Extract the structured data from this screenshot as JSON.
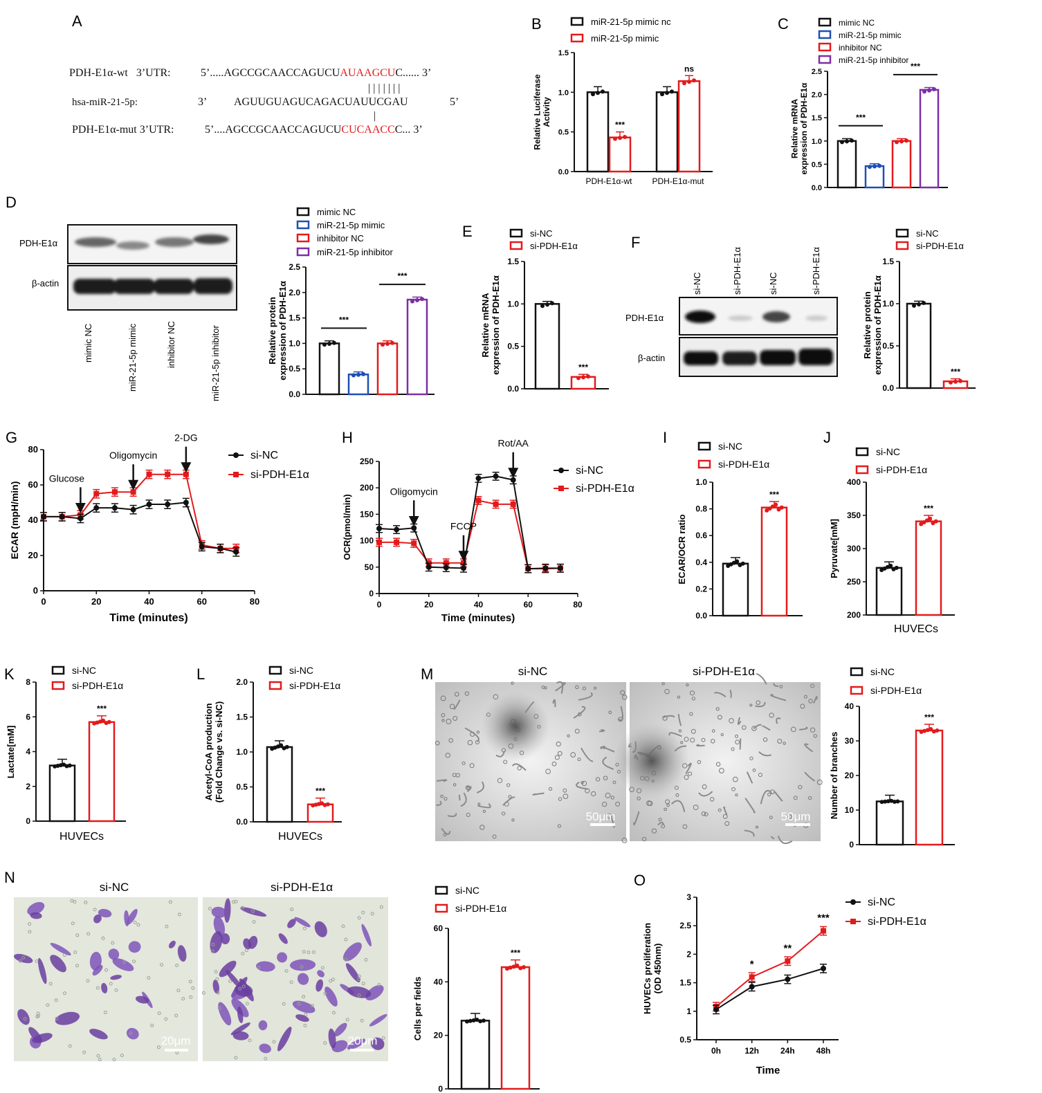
{
  "panel_labels": {
    "A": "A",
    "B": "B",
    "C": "C",
    "D": "D",
    "E": "E",
    "F": "F",
    "G": "G",
    "H": "H",
    "I": "I",
    "J": "J",
    "K": "K",
    "L": "L",
    "M": "M",
    "N": "N",
    "O": "O"
  },
  "colors": {
    "black": "#111111",
    "blue": "#1f4fb4",
    "red": "#e31a1c",
    "purple": "#7b2fa6"
  },
  "seq_panel": {
    "wt_label": "PDH-E1α-wt   3’UTR:",
    "wt_prefix": "5’.....AGCCGCAACCAGUCU",
    "wt_red": "AUAAGCU",
    "wt_suffix": "C...... 3’",
    "mir_label": "hsa-miR-21-5p:",
    "mir_3p": "3’",
    "mir_seq": "AGUUGUAGUCAGACUAUUCGAU",
    "mir_5p": "5’",
    "pairing_top": "| | | | | | |",
    "pairing_bottom": "|",
    "mut_label": "PDH-E1α-mut 3’UTR:",
    "mut_prefix": "5’....AGCCGCAACCAGUCU",
    "mut_red": "CUCAACC",
    "mut_suffix": "C... 3’"
  },
  "blots": {
    "D": {
      "protein": "PDH-E1α",
      "loading": "β-actin",
      "lanes": [
        "mimic NC",
        "miR-21-5p mimic",
        "inhibitor NC",
        "miR-21-5p inhibitor"
      ]
    },
    "F": {
      "protein": "PDH-E1α",
      "loading": "β-actin",
      "lanes": [
        "si-NC",
        "si-PDH-E1α",
        "si-NC",
        "si-PDH-E1α"
      ]
    }
  },
  "micrographs": {
    "M": {
      "titles": [
        "si-NC",
        "si-PDH-E1α"
      ],
      "scale": "50μm"
    },
    "N": {
      "titles": [
        "si-NC",
        "si-PDH-E1α"
      ],
      "scale": "20μm"
    }
  },
  "chart_data": [
    {
      "id": "B",
      "type": "bar",
      "ylabel": "Relative Luciferase Activity",
      "ylim": [
        0,
        1.5
      ],
      "yticks": [
        0,
        0.5,
        1.0,
        1.5
      ],
      "tickfmt": 1,
      "categories": [
        "PDH-E1α-wt",
        "PDH-E1α-mut"
      ],
      "series": [
        {
          "name": "miR-21-5p mimic nc",
          "color": "black",
          "values": [
            1.0,
            1.0
          ]
        },
        {
          "name": "miR-21-5p mimic",
          "color": "red",
          "values": [
            0.43,
            1.14
          ]
        }
      ],
      "annotations": [
        {
          "text": "***",
          "group": 0,
          "series": 1
        },
        {
          "text": "ns",
          "group": 1,
          "series": 1
        }
      ]
    },
    {
      "id": "C",
      "type": "bar",
      "ylabel": "Relative mRNA expression of PDH-E1α",
      "ylim": [
        0,
        2.5
      ],
      "yticks": [
        0,
        0.5,
        1.0,
        1.5,
        2.0,
        2.5
      ],
      "tickfmt": 1,
      "series": [
        {
          "name": "mimic NC",
          "color": "black",
          "value": 1.0
        },
        {
          "name": "miR-21-5p mimic",
          "color": "blue",
          "value": 0.46
        },
        {
          "name": "inhibitor NC",
          "color": "red",
          "value": 1.0
        },
        {
          "name": "miR-21-5p inhibitor",
          "color": "purple",
          "value": 2.1
        }
      ],
      "annotations": [
        {
          "text": "***",
          "pair": [
            0,
            1
          ]
        },
        {
          "text": "***",
          "pair": [
            2,
            3
          ]
        }
      ]
    },
    {
      "id": "D",
      "type": "bar",
      "ylabel": "Relative protein expression of PDH-E1α",
      "ylim": [
        0,
        2.5
      ],
      "yticks": [
        0,
        0.5,
        1.0,
        1.5,
        2.0,
        2.5
      ],
      "tickfmt": 1,
      "series": [
        {
          "name": "mimic NC",
          "color": "black",
          "value": 1.0
        },
        {
          "name": "miR-21-5p mimic",
          "color": "blue",
          "value": 0.39
        },
        {
          "name": "inhibitor NC",
          "color": "red",
          "value": 1.0
        },
        {
          "name": "miR-21-5p inhibitor",
          "color": "purple",
          "value": 1.86
        }
      ],
      "annotations": [
        {
          "text": "***",
          "pair": [
            0,
            1
          ]
        },
        {
          "text": "***",
          "pair": [
            2,
            3
          ]
        }
      ]
    },
    {
      "id": "E",
      "type": "bar",
      "ylabel": "Relative mRNA expression of PDH-E1α",
      "ylim": [
        0,
        1.5
      ],
      "yticks": [
        0,
        0.5,
        1.0,
        1.5
      ],
      "tickfmt": 1,
      "series": [
        {
          "name": "si-NC",
          "color": "black",
          "value": 1.0
        },
        {
          "name": "si-PDH-E1α",
          "color": "red",
          "value": 0.14
        }
      ],
      "annotations": [
        {
          "text": "***",
          "bar": 1
        }
      ]
    },
    {
      "id": "F",
      "type": "bar",
      "ylabel": "Relative protein expression of PDH-E1α",
      "ylim": [
        0,
        1.5
      ],
      "yticks": [
        0,
        0.5,
        1.0,
        1.5
      ],
      "tickfmt": 1,
      "series": [
        {
          "name": "si-NC",
          "color": "black",
          "value": 1.0
        },
        {
          "name": "si-PDH-E1α",
          "color": "red",
          "value": 0.08
        }
      ],
      "annotations": [
        {
          "text": "***",
          "bar": 1
        }
      ]
    },
    {
      "id": "G",
      "type": "line",
      "xlabel": "Time (minutes)",
      "ylabel": "ECAR (mpH/min)",
      "xlim": [
        0,
        80
      ],
      "ylim": [
        0,
        80
      ],
      "xticks": [
        0,
        20,
        40,
        60,
        80
      ],
      "yticks": [
        0,
        20,
        40,
        60,
        80
      ],
      "x": [
        0,
        7,
        14,
        20,
        27,
        34,
        40,
        47,
        54,
        60,
        67,
        73
      ],
      "series": [
        {
          "name": "si-NC",
          "color": "black",
          "values": [
            42,
            42,
            41,
            47,
            47,
            46,
            49,
            49,
            50,
            25,
            24,
            22
          ]
        },
        {
          "name": "si-PDH-E1α",
          "color": "red",
          "values": [
            42,
            42,
            43,
            55,
            56,
            56,
            66,
            66,
            66,
            26,
            24,
            24
          ]
        }
      ],
      "annotations": [
        {
          "text": "Glucose",
          "x": 14
        },
        {
          "text": "Oligomycin",
          "x": 34
        },
        {
          "text": "2-DG",
          "x": 54
        }
      ]
    },
    {
      "id": "H",
      "type": "line",
      "xlabel": "Time (minutes)",
      "ylabel": "OCR(pmol/min)",
      "xlim": [
        0,
        80
      ],
      "ylim": [
        0,
        250
      ],
      "xticks": [
        0,
        20,
        40,
        60,
        80
      ],
      "yticks": [
        0,
        50,
        100,
        150,
        200,
        250
      ],
      "x": [
        0,
        7,
        14,
        20,
        27,
        34,
        40,
        47,
        54,
        60,
        67,
        73
      ],
      "series": [
        {
          "name": "si-NC",
          "color": "black",
          "values": [
            123,
            121,
            124,
            50,
            49,
            48,
            218,
            222,
            215,
            47,
            48,
            48
          ]
        },
        {
          "name": "si-PDH-E1α",
          "color": "red",
          "values": [
            97,
            97,
            95,
            58,
            58,
            58,
            176,
            169,
            169,
            47,
            47,
            48
          ]
        }
      ],
      "annotations": [
        {
          "text": "Oligomycin",
          "x": 14
        },
        {
          "text": "FCCP",
          "x": 34
        },
        {
          "text": "Rot/AA",
          "x": 54
        }
      ]
    },
    {
      "id": "I",
      "type": "bar",
      "ylabel": "ECAR/OCR ratio",
      "ylim": [
        0,
        1.0
      ],
      "yticks": [
        0,
        0.2,
        0.4,
        0.6,
        0.8,
        1.0
      ],
      "tickfmt": 1,
      "series": [
        {
          "name": "si-NC",
          "color": "black",
          "value": 0.39
        },
        {
          "name": "si-PDH-E1α",
          "color": "red",
          "value": 0.81
        }
      ],
      "annotations": [
        {
          "text": "***",
          "bar": 1
        }
      ]
    },
    {
      "id": "J",
      "type": "bar",
      "ylabel": "Pyruvate[mM]",
      "xlabel": "HUVECs",
      "ylim": [
        200,
        400
      ],
      "yticks": [
        200,
        250,
        300,
        350,
        400
      ],
      "tickfmt": 0,
      "series": [
        {
          "name": "si-NC",
          "color": "black",
          "value": 271
        },
        {
          "name": "si-PDH-E1α",
          "color": "red",
          "value": 341
        }
      ],
      "annotations": [
        {
          "text": "***",
          "bar": 1
        }
      ]
    },
    {
      "id": "K",
      "type": "bar",
      "ylabel": "Lactate[mM]",
      "xlabel": "HUVECs",
      "ylim": [
        0,
        8
      ],
      "yticks": [
        0,
        2,
        4,
        6,
        8
      ],
      "tickfmt": 0,
      "series": [
        {
          "name": "si-NC",
          "color": "black",
          "value": 3.2
        },
        {
          "name": "si-PDH-E1α",
          "color": "red",
          "value": 5.7
        }
      ],
      "annotations": [
        {
          "text": "***",
          "bar": 1
        }
      ]
    },
    {
      "id": "L",
      "type": "bar",
      "ylabel": "Acetyl-CoA production (Fold Change vs. si-NC)",
      "xlabel": "HUVECs",
      "ylim": [
        0,
        2.0
      ],
      "yticks": [
        0,
        0.5,
        1.0,
        1.5,
        2.0
      ],
      "tickfmt": 1,
      "series": [
        {
          "name": "si-NC",
          "color": "black",
          "value": 1.07
        },
        {
          "name": "si-PDH-E1α",
          "color": "red",
          "value": 0.25
        }
      ],
      "annotations": [
        {
          "text": "***",
          "bar": 1
        }
      ]
    },
    {
      "id": "M",
      "type": "bar",
      "ylabel": "Number of branches",
      "ylim": [
        0,
        40
      ],
      "yticks": [
        0,
        10,
        20,
        30,
        40
      ],
      "tickfmt": 0,
      "series": [
        {
          "name": "si-NC",
          "color": "black",
          "value": 12.5
        },
        {
          "name": "si-PDH-E1α",
          "color": "red",
          "value": 33
        }
      ],
      "annotations": [
        {
          "text": "***",
          "bar": 1
        }
      ]
    },
    {
      "id": "N",
      "type": "bar",
      "ylabel": "Cells per fields",
      "ylim": [
        0,
        60
      ],
      "yticks": [
        0,
        20,
        40,
        60
      ],
      "tickfmt": 0,
      "series": [
        {
          "name": "si-NC",
          "color": "black",
          "value": 25.5
        },
        {
          "name": "si-PDH-E1α",
          "color": "red",
          "value": 45.5
        }
      ],
      "annotations": [
        {
          "text": "***",
          "bar": 1
        }
      ]
    },
    {
      "id": "O",
      "type": "line",
      "xlabel": "Time",
      "ylabel": "HUVECs proliferation (OD 450nm)",
      "ylim": [
        0.5,
        3.0
      ],
      "yticks": [
        0.5,
        1.0,
        1.5,
        2.0,
        2.5,
        3.0
      ],
      "categories": [
        "0h",
        "12h",
        "24h",
        "48h"
      ],
      "series": [
        {
          "name": "si-NC",
          "color": "black",
          "values": [
            1.03,
            1.43,
            1.56,
            1.75
          ]
        },
        {
          "name": "si-PDH-E1α",
          "color": "red",
          "values": [
            1.08,
            1.6,
            1.88,
            2.41
          ]
        }
      ],
      "annotations": [
        {
          "text": "*",
          "point": 1
        },
        {
          "text": "**",
          "point": 2
        },
        {
          "text": "***",
          "point": 3
        }
      ]
    }
  ]
}
